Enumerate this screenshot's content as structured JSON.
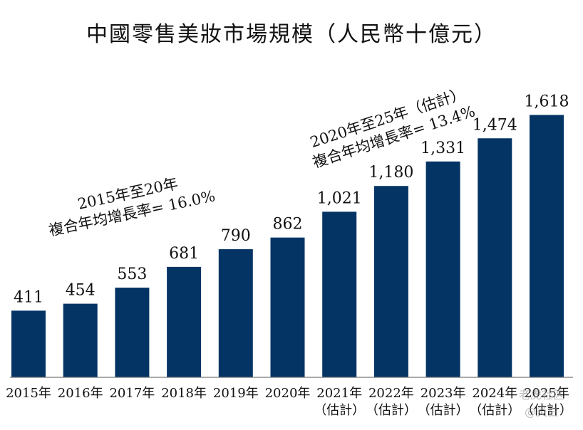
{
  "chart_data": {
    "type": "bar",
    "title": "中國零售美妝市場規模（人民幣十億元）",
    "categories": [
      "2015年",
      "2016年",
      "2017年",
      "2018年",
      "2019年",
      "2020年",
      "2021年（估計）",
      "2022年（估計）",
      "2023年（估計）",
      "2024年（估計）",
      "2025年（估計）"
    ],
    "tick_labels": [
      [
        "2015年"
      ],
      [
        "2016年"
      ],
      [
        "2017年"
      ],
      [
        "2018年"
      ],
      [
        "2019年"
      ],
      [
        "2020年"
      ],
      [
        "2021年",
        "（估計）"
      ],
      [
        "2022年",
        "（估計）"
      ],
      [
        "2023年",
        "（估計）"
      ],
      [
        "2024年",
        "（估計）"
      ],
      [
        "2025年",
        "（估計）"
      ]
    ],
    "values": [
      411,
      454,
      553,
      681,
      790,
      862,
      1021,
      1180,
      1331,
      1474,
      1618
    ],
    "data_labels": [
      "411",
      "454",
      "553",
      "681",
      "790",
      "862",
      "1,021",
      "1,180",
      "1,331",
      "1,474",
      "1,618"
    ],
    "ylim": [
      0,
      1800
    ],
    "grid": false,
    "bar_color": "#043464",
    "annotations": [
      {
        "lines": [
          "2015年至20年",
          "複合年均增長率= 16.0%"
        ],
        "placement": "upper-left"
      },
      {
        "lines": [
          "2020年至25年（估計）",
          "複合年均增長率= 13.4%"
        ],
        "placement": "upper-right"
      }
    ]
  },
  "watermark": {
    "line1": "老虎社区",
    "line2": "@炎白"
  }
}
